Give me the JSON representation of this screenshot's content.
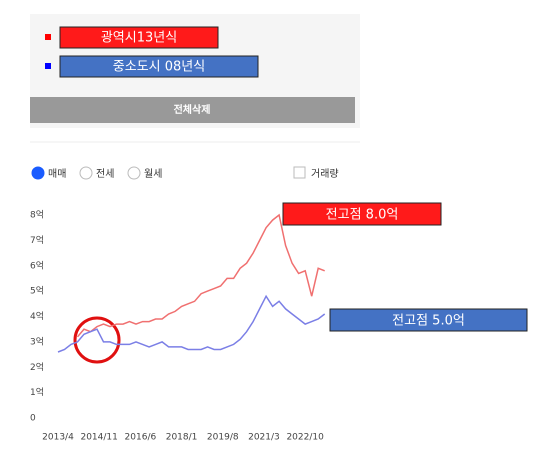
{
  "chart_data": {
    "type": "line",
    "x": [
      "2013/4",
      "2013/7",
      "2013/10",
      "2014/1",
      "2014/4",
      "2014/7",
      "2014/10",
      "2015/1",
      "2015/4",
      "2015/7",
      "2015/10",
      "2016/1",
      "2016/4",
      "2016/7",
      "2016/10",
      "2017/1",
      "2017/4",
      "2017/7",
      "2017/10",
      "2018/1",
      "2018/4",
      "2018/7",
      "2018/10",
      "2019/1",
      "2019/4",
      "2019/7",
      "2019/10",
      "2020/1",
      "2020/4",
      "2020/7",
      "2020/10",
      "2021/1",
      "2021/4",
      "2021/7",
      "2021/10",
      "2022/1",
      "2022/4",
      "2022/7",
      "2022/10",
      "2023/1",
      "2023/4",
      "2023/7"
    ],
    "series": [
      {
        "name": "광역시13년식",
        "color": "#f07070",
        "legend_fill": "#ff1a1a",
        "values": [
          null,
          null,
          null,
          3.2,
          3.5,
          3.4,
          3.6,
          3.7,
          3.6,
          3.7,
          3.7,
          3.8,
          3.7,
          3.8,
          3.8,
          3.9,
          3.9,
          4.1,
          4.2,
          4.4,
          4.5,
          4.6,
          4.9,
          5.0,
          5.1,
          5.2,
          5.5,
          5.5,
          5.9,
          6.1,
          6.5,
          7.0,
          7.5,
          7.8,
          8.0,
          6.8,
          6.1,
          5.7,
          5.8,
          4.8,
          5.9,
          5.8
        ]
      },
      {
        "name": "중소도시 08년식",
        "color": "#7b7fe6",
        "legend_fill": "#4472c4",
        "values": [
          2.6,
          2.7,
          2.9,
          3.0,
          3.3,
          3.4,
          3.5,
          3.0,
          3.0,
          2.9,
          2.9,
          2.9,
          3.0,
          2.9,
          2.8,
          2.9,
          3.0,
          2.8,
          2.8,
          2.8,
          2.7,
          2.7,
          2.7,
          2.8,
          2.7,
          2.7,
          2.8,
          2.9,
          3.1,
          3.4,
          3.8,
          4.3,
          4.8,
          4.4,
          4.6,
          4.3,
          4.1,
          3.9,
          3.7,
          3.8,
          3.9,
          4.1
        ]
      }
    ],
    "xlim": [
      "2013/4",
      "2023/9"
    ],
    "xticks": [
      "2013/4",
      "2014/11",
      "2016/6",
      "2018/1",
      "2019/8",
      "2021/3",
      "2022/10"
    ],
    "ylim": [
      0,
      8
    ],
    "yticks": [
      0,
      {
        "value": 1,
        "label": "1억"
      },
      {
        "value": 2,
        "label": "2억"
      },
      {
        "value": 3,
        "label": "3억"
      },
      {
        "value": 4,
        "label": "4억"
      },
      {
        "value": 5,
        "label": "5억"
      },
      {
        "value": 6,
        "label": "6억"
      },
      {
        "value": 7,
        "label": "7억"
      },
      {
        "value": 8,
        "label": "8억"
      }
    ],
    "grid": false,
    "annotations": [
      {
        "text": "전고점 8.0억",
        "value": 8.0,
        "color": "#ff1a1a"
      },
      {
        "text": "전고점 5.0억",
        "value": 5.0,
        "color": "#4472c4"
      }
    ]
  },
  "controls": {
    "clear_button": "전체삭제",
    "radios": [
      "매매",
      "전세",
      "월세"
    ],
    "selected": 0,
    "checkbox": "거래량"
  }
}
